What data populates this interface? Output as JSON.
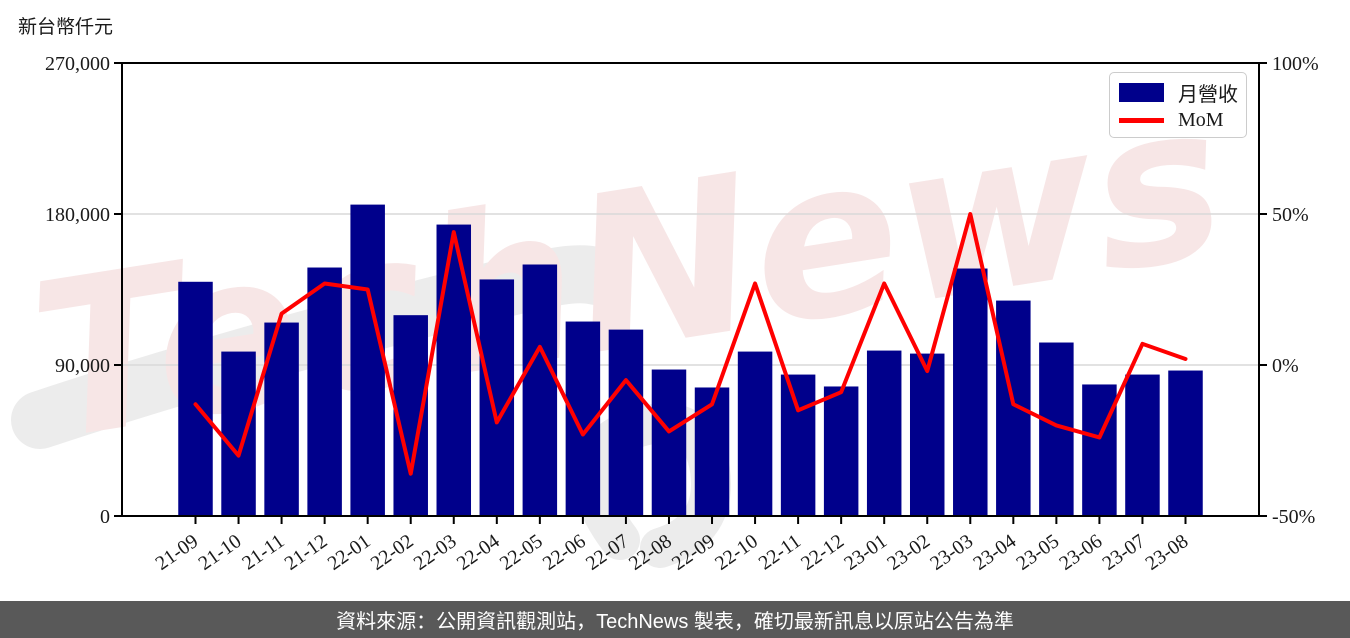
{
  "page": {
    "background": "#ffffff"
  },
  "watermark": {
    "text": "TechNews",
    "color": "#f7e6e6",
    "swoosh_color": "#ececec"
  },
  "legend": {
    "items": [
      {
        "label": "月營收",
        "type": "bar",
        "color": "#00008b"
      },
      {
        "label": "MoM",
        "type": "line",
        "color": "#ff0000"
      }
    ]
  },
  "footer": {
    "text": "資料來源：公開資訊觀測站，TechNews 製表，確切最新訊息以原站公告為準",
    "background": "#595959",
    "text_color": "#ffffff"
  },
  "chart_data": {
    "type": "bar",
    "title": "",
    "categories": [
      "21-09",
      "21-10",
      "21-11",
      "21-12",
      "22-01",
      "22-02",
      "22-03",
      "22-04",
      "22-05",
      "22-06",
      "22-07",
      "22-08",
      "22-09",
      "22-10",
      "22-11",
      "22-12",
      "23-01",
      "23-02",
      "23-03",
      "23-04",
      "23-05",
      "23-06",
      "23-07",
      "23-08"
    ],
    "series": [
      {
        "name": "月營收",
        "type": "bar",
        "axis": "left",
        "color": "#00008b",
        "values": [
          139600,
          98000,
          115300,
          148100,
          185600,
          119700,
          173700,
          141000,
          149900,
          115900,
          111100,
          87300,
          76600,
          98000,
          84300,
          77200,
          98600,
          96800,
          147500,
          128400,
          103400,
          78400,
          84300,
          86700
        ]
      },
      {
        "name": "MoM",
        "type": "line",
        "axis": "right",
        "color": "#ff0000",
        "unit": "percent",
        "values": [
          -13,
          -30,
          17,
          27,
          25,
          -36,
          44,
          -19,
          6,
          -23,
          -5,
          -22,
          -13,
          27,
          -15,
          -9,
          27,
          -2,
          50,
          -13,
          -20,
          -24,
          7,
          2
        ]
      }
    ],
    "left_axis": {
      "title": "新台幣仟元",
      "min": 0,
      "max": 270000,
      "tick_values": [
        0,
        90000,
        180000,
        270000
      ],
      "tick_labels": [
        "0",
        "90,000",
        "180,000",
        "270,000"
      ]
    },
    "right_axis": {
      "min": -50,
      "max": 100,
      "tick_values": [
        -50,
        0,
        50,
        100
      ],
      "tick_labels": [
        "-50%",
        "0%",
        "50%",
        "100%"
      ]
    },
    "grid": {
      "horizontal_at_left_values": [
        90000,
        180000
      ],
      "color": "#d9d9d9"
    },
    "legend_position": "top-right",
    "x_tick_label_rotation_deg": -35
  }
}
